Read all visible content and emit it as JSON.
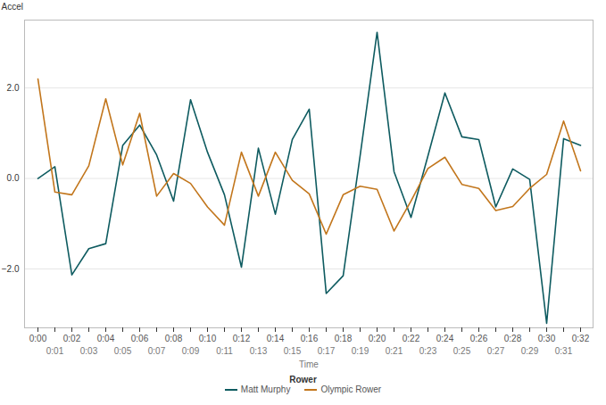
{
  "chart_data": {
    "type": "line",
    "x_label": "Time",
    "y_label": "Accel",
    "categories": [
      "0:00",
      "0:01",
      "0:02",
      "0:03",
      "0:04",
      "0:05",
      "0:06",
      "0:07",
      "0:08",
      "0:09",
      "0:10",
      "0:11",
      "0:12",
      "0:13",
      "0:14",
      "0:15",
      "0:16",
      "0:17",
      "0:18",
      "0:19",
      "0:20",
      "0:21",
      "0:22",
      "0:23",
      "0:24",
      "0:25",
      "0:26",
      "0:27",
      "0:28",
      "0:29",
      "0:30",
      "0:31",
      "0:32"
    ],
    "series": [
      {
        "name": "Matt Murphy",
        "color": "#0e5b60",
        "values": [
          0,
          0.26,
          -2.13,
          -1.55,
          -1.44,
          0.73,
          1.18,
          0.52,
          -0.5,
          1.74,
          0.58,
          -0.36,
          -1.96,
          0.67,
          -0.79,
          0.86,
          1.53,
          -2.54,
          -2.15,
          0.5,
          3.23,
          0.15,
          -0.86,
          0.5,
          1.89,
          0.92,
          0.86,
          -0.63,
          0.21,
          -0.02,
          -3.2,
          0.88,
          0.73
        ]
      },
      {
        "name": "Olympic Rower",
        "color": "#c2761c",
        "values": [
          2.2,
          -0.3,
          -0.36,
          0.28,
          1.76,
          0.3,
          1.44,
          -0.39,
          0.11,
          -0.11,
          -0.63,
          -1.03,
          0.58,
          -0.39,
          0.58,
          -0.04,
          -0.34,
          -1.23,
          -0.36,
          -0.17,
          -0.24,
          -1.16,
          -0.5,
          0.22,
          0.47,
          -0.13,
          -0.22,
          -0.71,
          -0.62,
          -0.22,
          0.09,
          1.27,
          0.17
        ]
      }
    ],
    "ylim": [
      -3.3,
      3.5
    ],
    "yticks": [
      -2,
      0,
      2
    ],
    "grid": true,
    "legend": "bottom",
    "legend_title": "Rower"
  }
}
